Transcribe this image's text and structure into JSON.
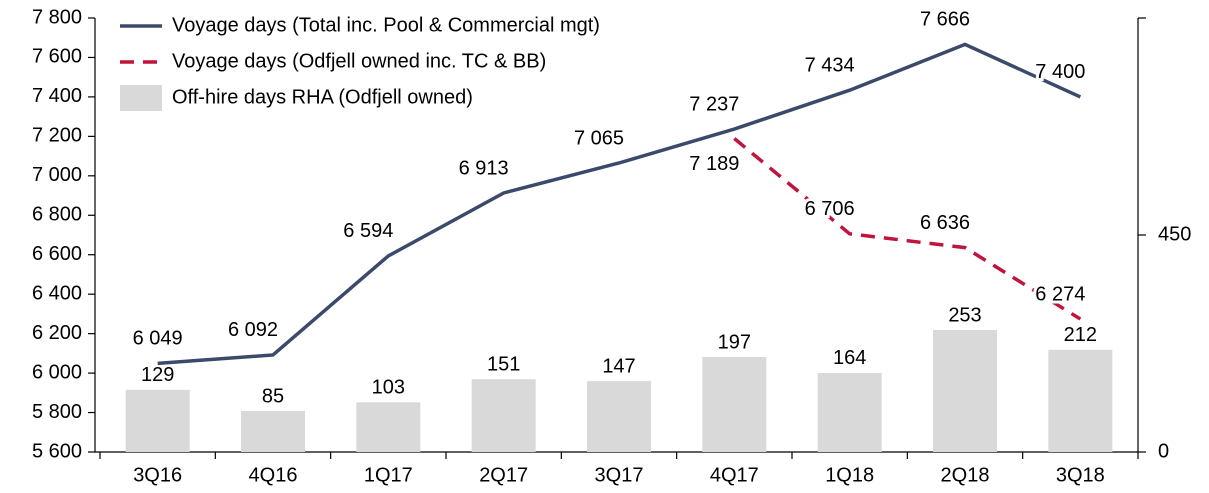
{
  "chart_data": {
    "type": "bar_line",
    "categories": [
      "3Q16",
      "4Q16",
      "1Q17",
      "2Q17",
      "3Q17",
      "4Q17",
      "1Q18",
      "2Q18",
      "3Q18"
    ],
    "series": [
      {
        "name": "Voyage days (Total inc. Pool & Commercial mgt)",
        "type": "line",
        "color": "#3b4a6b",
        "values": [
          6049,
          6092,
          6594,
          6913,
          7065,
          7237,
          7434,
          7666,
          7400
        ],
        "value_labels": [
          "6 049",
          "6 092",
          "6 594",
          "6 913",
          "7 065",
          "7 237",
          "7 434",
          "7 666",
          "7 400"
        ]
      },
      {
        "name": "Voyage days (Odfjell owned inc. TC & BB)",
        "type": "line",
        "dashed": true,
        "color": "#c0143c",
        "values": [
          null,
          null,
          null,
          null,
          null,
          7189,
          6706,
          6636,
          6274
        ],
        "value_labels": [
          null,
          null,
          null,
          null,
          null,
          "7 189",
          "6 706",
          "6 636",
          "6 274"
        ]
      },
      {
        "name": "Off-hire days RHA (Odfjell owned)",
        "type": "bar",
        "axis": "y2",
        "color": "#d9d9d9",
        "values": [
          129,
          85,
          103,
          151,
          147,
          197,
          164,
          253,
          212
        ]
      }
    ],
    "ylim": [
      5600,
      7800
    ],
    "yticks": [
      {
        "value": 5600,
        "label": "5 600"
      },
      {
        "value": 5800,
        "label": "5 800"
      },
      {
        "value": 6000,
        "label": "6 000"
      },
      {
        "value": 6200,
        "label": "6 200"
      },
      {
        "value": 6400,
        "label": "6 400"
      },
      {
        "value": 6600,
        "label": "6 600"
      },
      {
        "value": 6800,
        "label": "6 800"
      },
      {
        "value": 7000,
        "label": "7 000"
      },
      {
        "value": 7200,
        "label": "7 200"
      },
      {
        "value": 7400,
        "label": "7 400"
      },
      {
        "value": 7600,
        "label": "7 600"
      },
      {
        "value": 7800,
        "label": "7 800"
      }
    ],
    "y2lim": [
      0,
      900
    ],
    "y2ticks": [
      0,
      450
    ],
    "legend": "top-left"
  }
}
